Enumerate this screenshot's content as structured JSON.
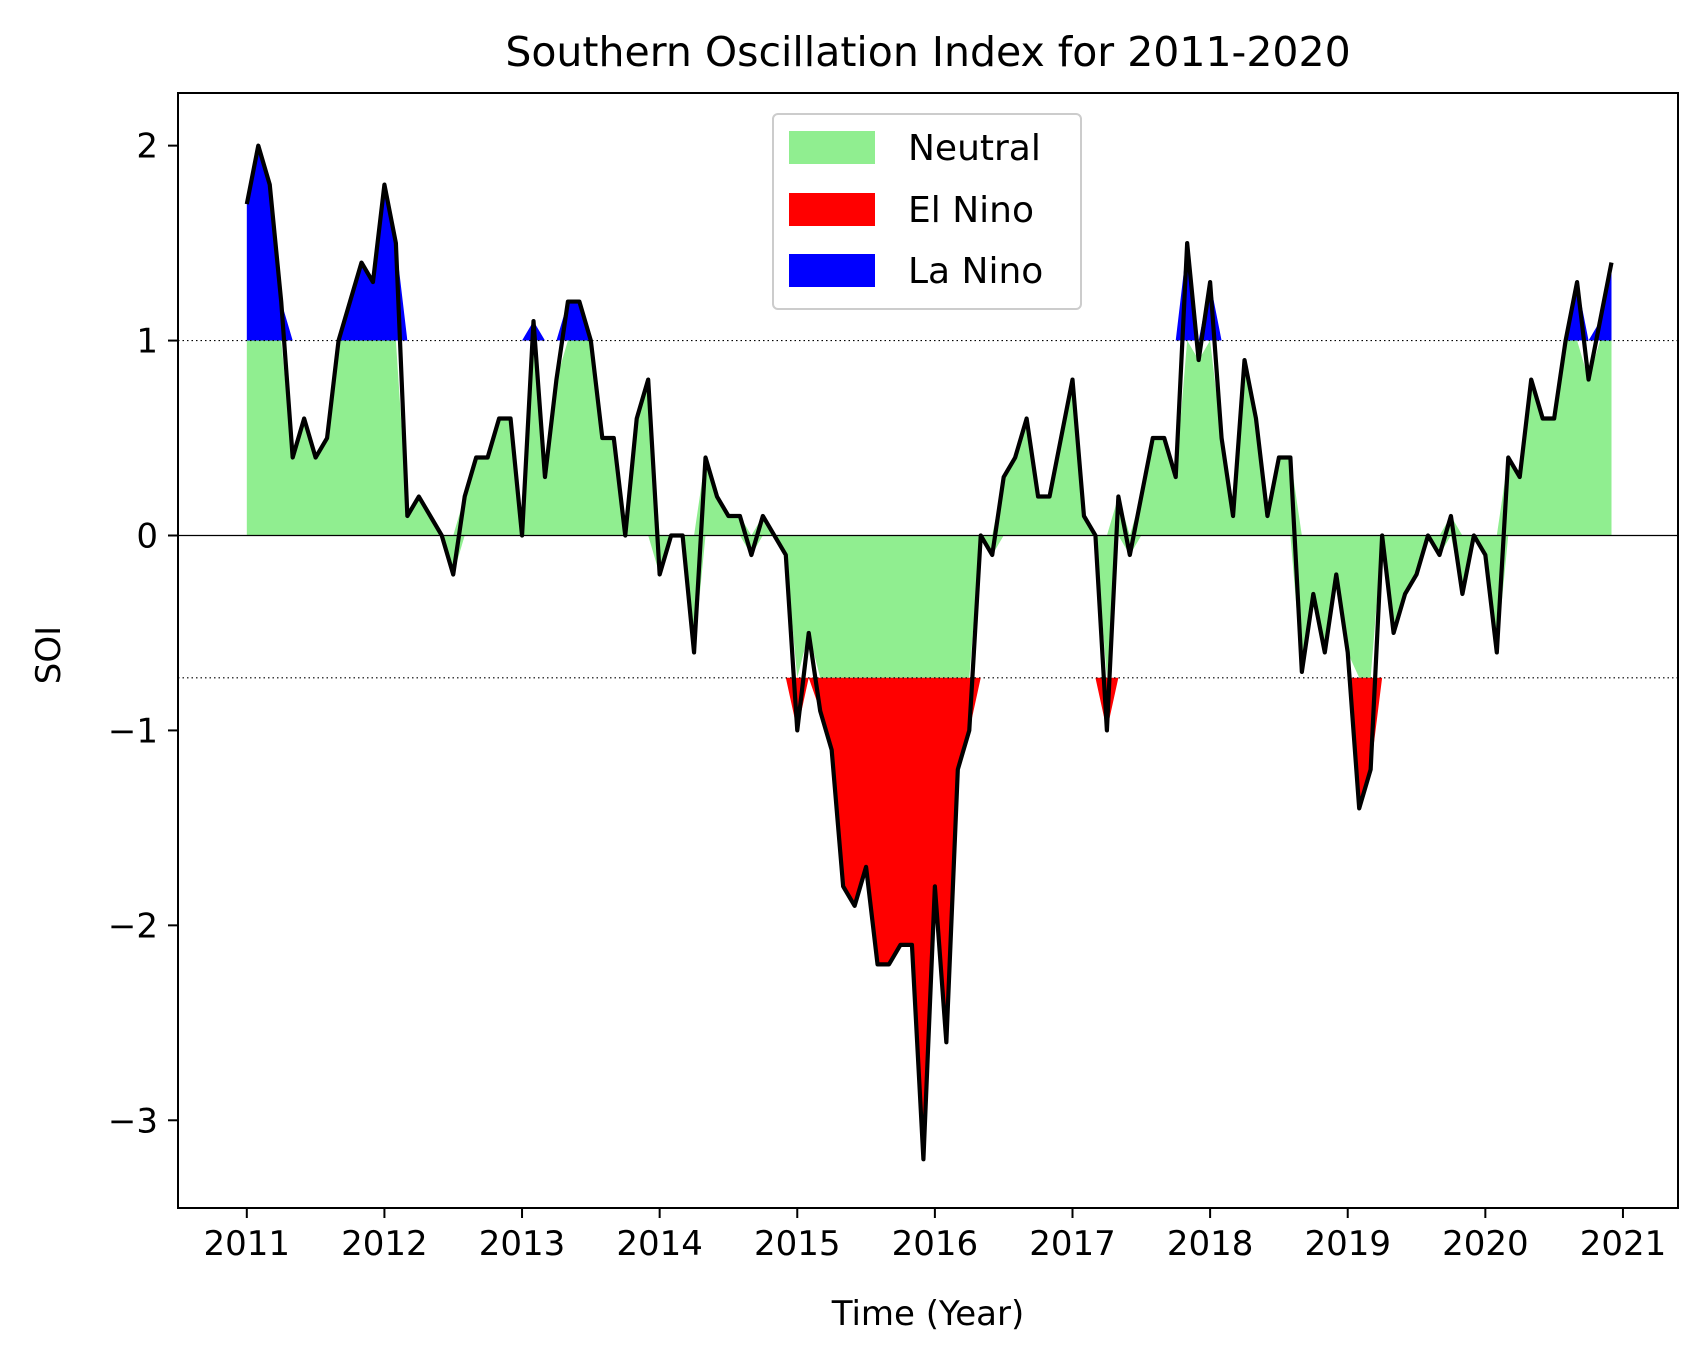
{
  "chart_data": {
    "type": "area",
    "title": "Southern Oscillation Index for 2011-2020",
    "xlabel": "Time (Year)",
    "ylabel": "SOI",
    "xlim": [
      2010.5,
      2021.4
    ],
    "ylim": [
      -3.45,
      2.27
    ],
    "x_ticks": [
      2011,
      2012,
      2013,
      2014,
      2015,
      2016,
      2017,
      2018,
      2019,
      2020,
      2021
    ],
    "y_ticks": [
      2,
      1,
      0,
      -1,
      -2,
      -3
    ],
    "y_tick_labels": [
      "2",
      "1",
      "0",
      "−1",
      "−2",
      "−3"
    ],
    "thresholds": {
      "la_nina": 1.0,
      "el_nino": -0.73
    },
    "grid": false,
    "legend_position": "upper-center",
    "legend": [
      {
        "label": "Neutral",
        "color": "#90ee90"
      },
      {
        "label": "El Nino",
        "color": "#ff0000"
      },
      {
        "label": "La Nino",
        "color": "#0000ff"
      }
    ],
    "line_color": "#000000",
    "x_start": 2011.0,
    "x_step": 0.0833333,
    "values": [
      1.7,
      2.0,
      1.8,
      1.2,
      0.4,
      0.6,
      0.4,
      0.5,
      1.0,
      1.2,
      1.4,
      1.3,
      1.8,
      1.5,
      0.1,
      0.2,
      0.1,
      0.0,
      -0.2,
      0.2,
      0.4,
      0.4,
      0.6,
      0.6,
      0.0,
      1.1,
      0.3,
      0.8,
      1.2,
      1.2,
      1.0,
      0.5,
      0.5,
      0.0,
      0.6,
      0.8,
      -0.2,
      0.0,
      0.0,
      -0.6,
      0.4,
      0.2,
      0.1,
      0.1,
      -0.1,
      0.1,
      0.0,
      -0.1,
      -1.0,
      -0.5,
      -0.9,
      -1.1,
      -1.8,
      -1.9,
      -1.7,
      -2.2,
      -2.2,
      -2.1,
      -2.1,
      -3.2,
      -1.8,
      -2.6,
      -1.2,
      -1.0,
      0.0,
      -0.1,
      0.3,
      0.4,
      0.6,
      0.2,
      0.2,
      0.5,
      0.8,
      0.1,
      0.0,
      -1.0,
      0.2,
      -0.1,
      0.2,
      0.5,
      0.5,
      0.3,
      1.5,
      0.9,
      1.3,
      0.5,
      0.1,
      0.9,
      0.6,
      0.1,
      0.4,
      0.4,
      -0.7,
      -0.3,
      -0.6,
      -0.2,
      -0.6,
      -1.4,
      -1.2,
      0.0,
      -0.5,
      -0.3,
      -0.2,
      0.0,
      -0.1,
      0.1,
      -0.3,
      0.0,
      -0.1,
      -0.6,
      0.4,
      0.3,
      0.8,
      0.6,
      0.6,
      1.0,
      1.3,
      0.8,
      1.1,
      1.4
    ]
  }
}
